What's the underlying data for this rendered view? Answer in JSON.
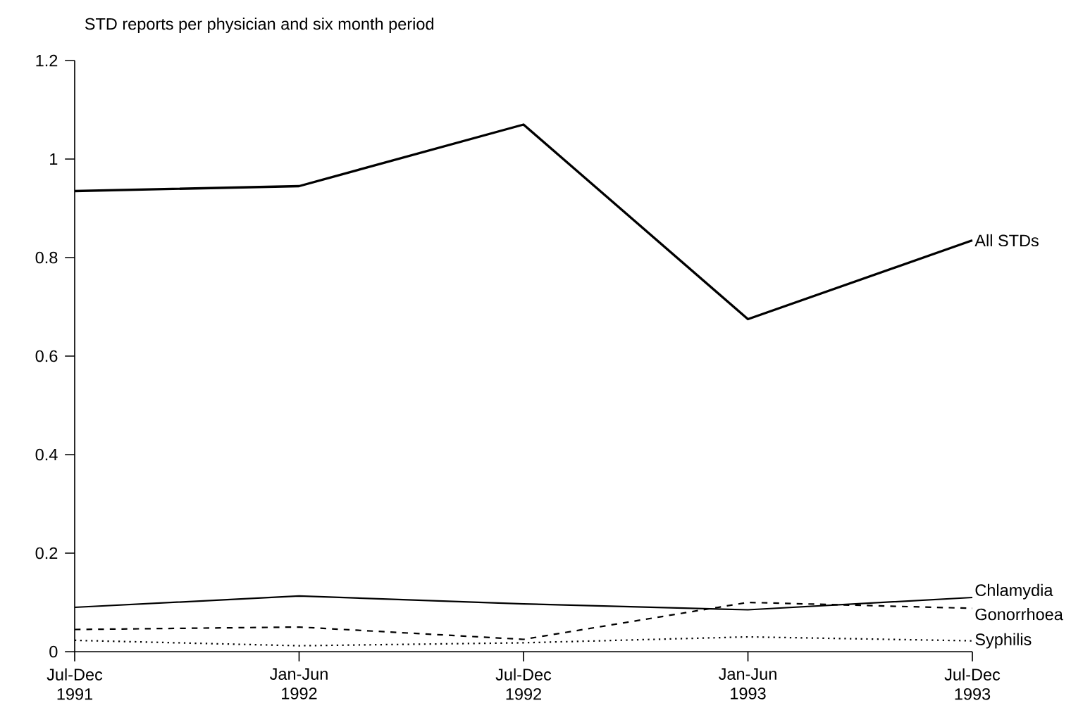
{
  "chart_data": {
    "type": "line",
    "title": "STD reports per physician and six month period",
    "categories": [
      "Jul-Dec 1991",
      "Jan-Jun 1992",
      "Jul-Dec 1992",
      "Jan-Jun 1993",
      "Jul-Dec 1993"
    ],
    "series": [
      {
        "name": "All STDs",
        "color": "#000000",
        "line_style": "solid",
        "values": [
          0.935,
          0.945,
          1.07,
          0.675,
          0.835
        ]
      },
      {
        "name": "Chlamydia",
        "color": "#000000",
        "line_style": "solid",
        "values": [
          0.09,
          0.113,
          0.097,
          0.085,
          0.11
        ]
      },
      {
        "name": "Gonorrhoea",
        "color": "#000000",
        "line_style": "dashed",
        "values": [
          0.045,
          0.05,
          0.025,
          0.1,
          0.088
        ]
      },
      {
        "name": "Syphilis",
        "color": "#000000",
        "line_style": "dotted",
        "values": [
          0.023,
          0.012,
          0.018,
          0.03,
          0.022
        ]
      }
    ],
    "ylim": [
      0,
      1.2
    ],
    "yticks": [
      0,
      0.2,
      0.4,
      0.6,
      0.8,
      1,
      1.2
    ],
    "grid": false,
    "marker": "none"
  }
}
